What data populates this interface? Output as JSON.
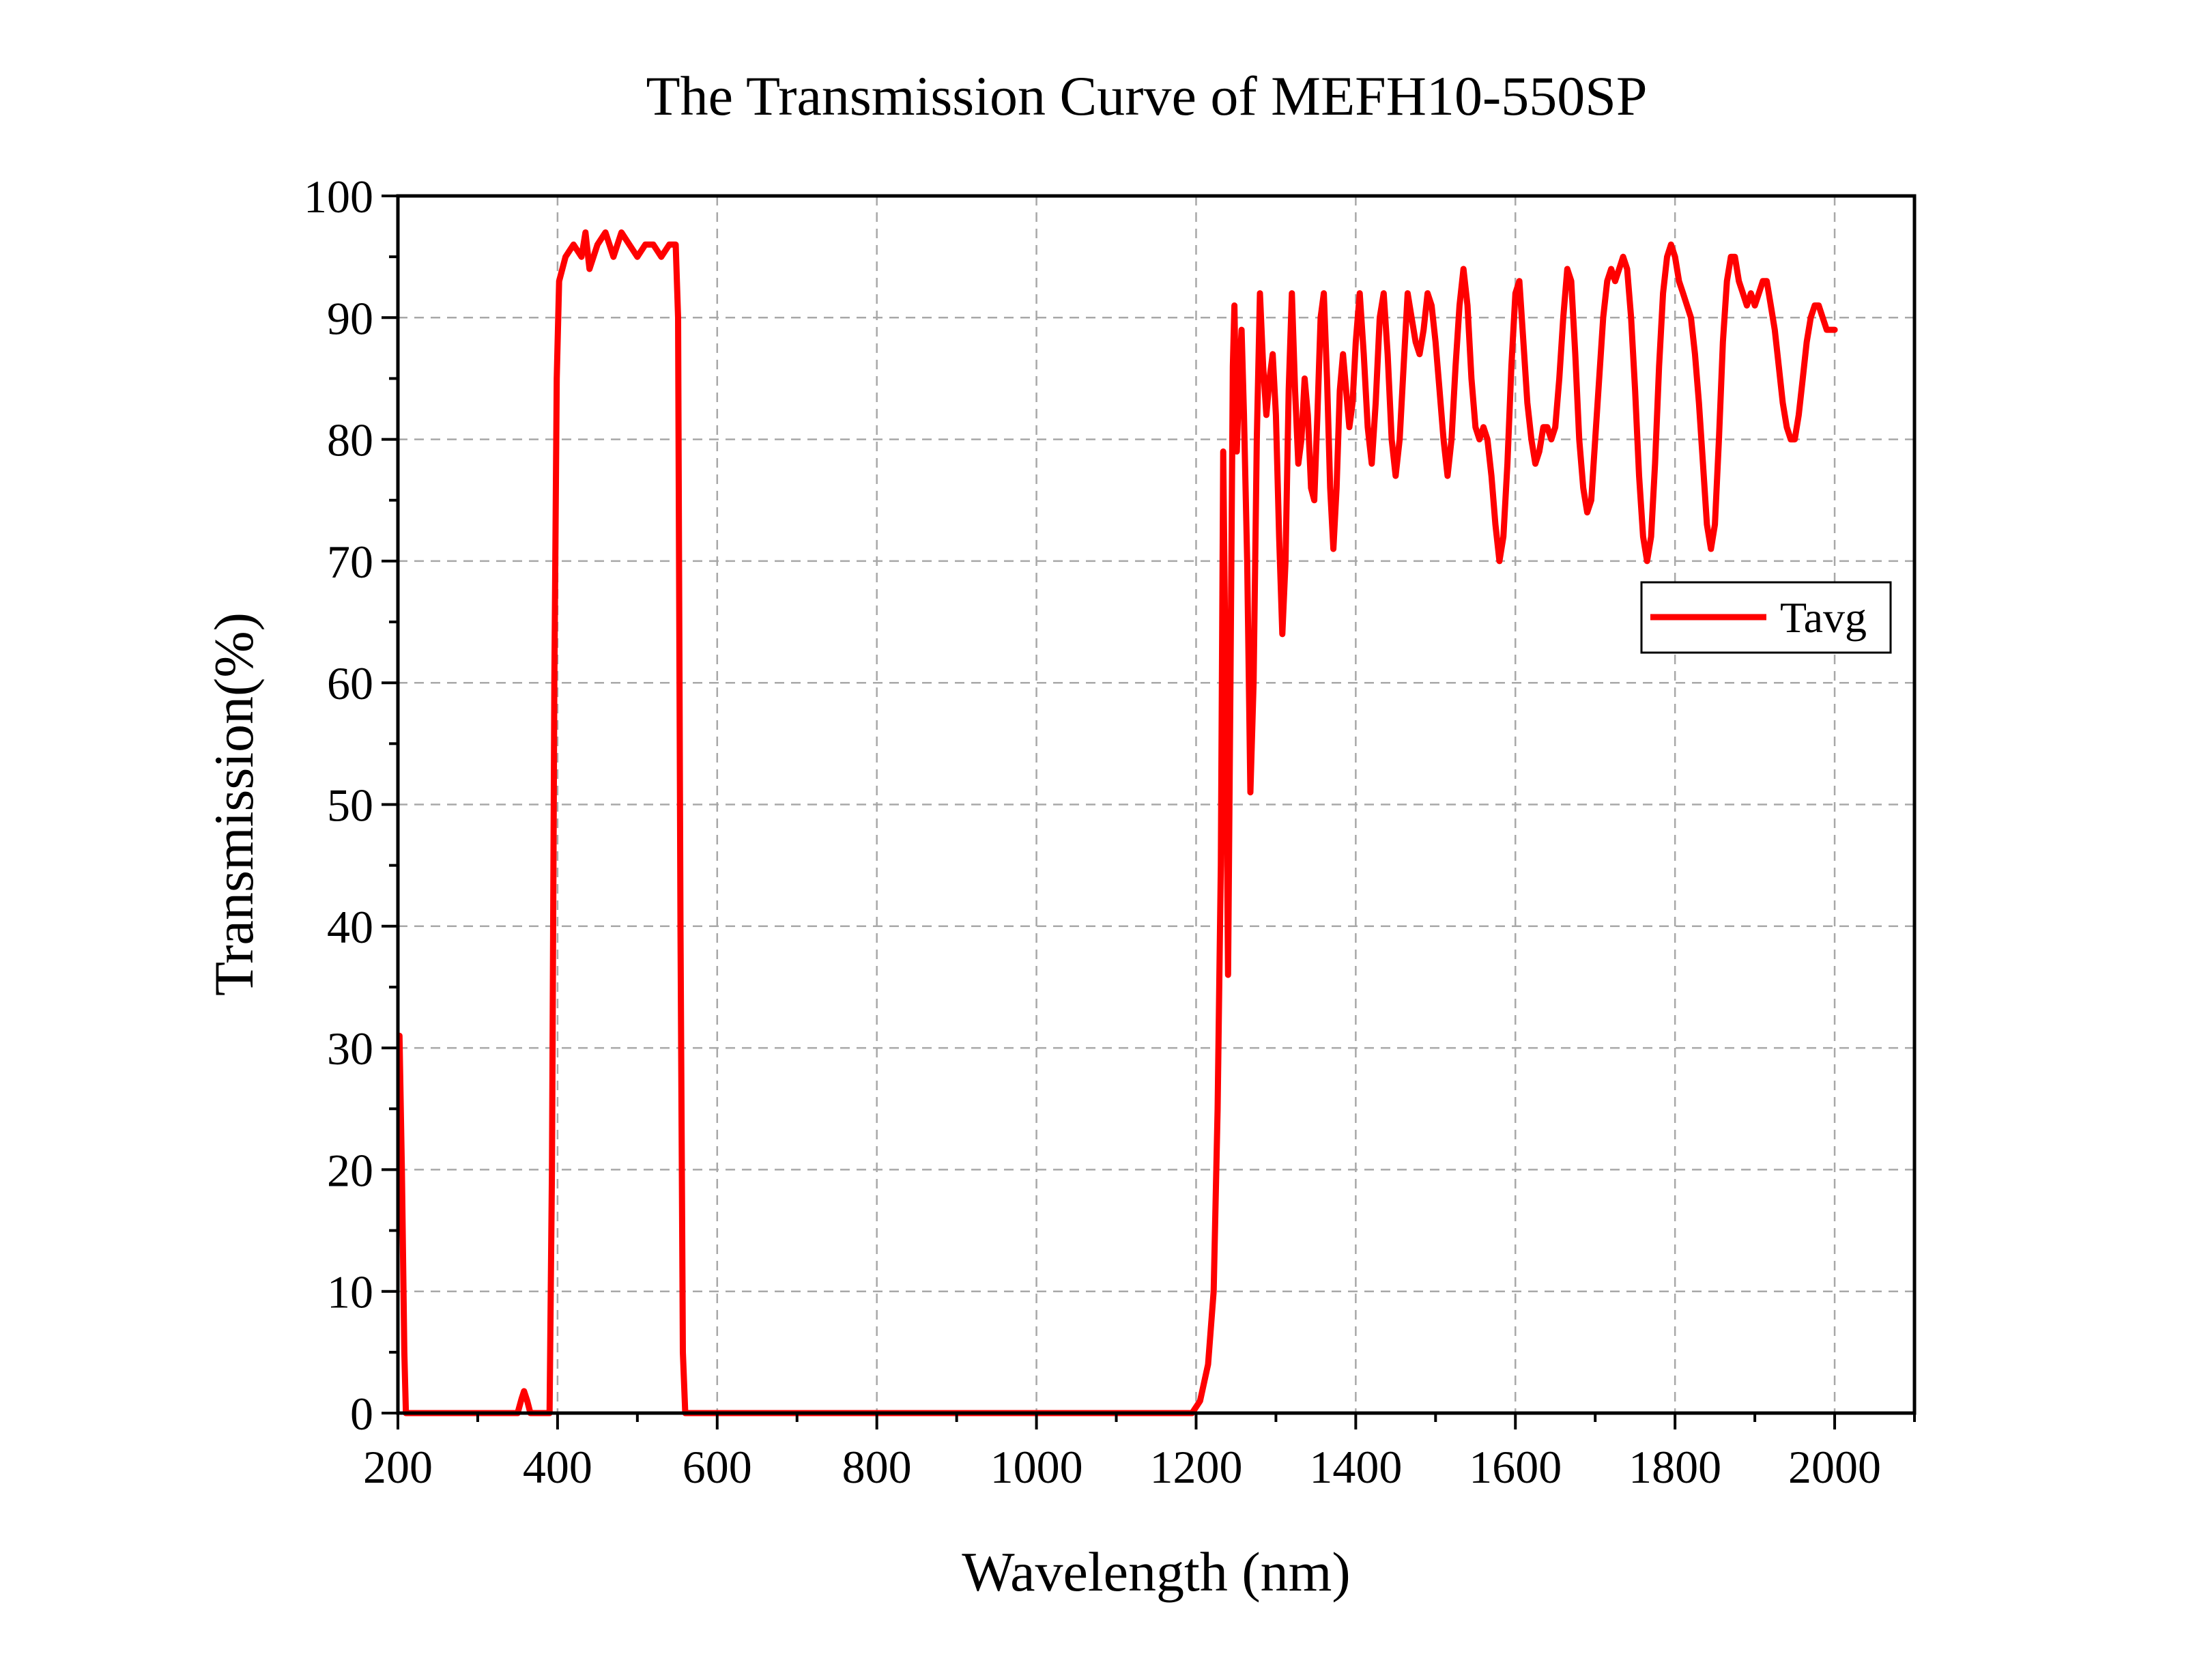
{
  "chart_data": {
    "type": "line",
    "title": "The Transmission Curve of MEFH10-550SP",
    "xlabel": "Wavelength (nm)",
    "ylabel": "Transmission(%)",
    "xlim": [
      200,
      2100
    ],
    "ylim": [
      0,
      100
    ],
    "xticks": [
      200,
      400,
      600,
      800,
      1000,
      1200,
      1400,
      1600,
      1800,
      2000
    ],
    "yticks": [
      0,
      10,
      20,
      30,
      40,
      50,
      60,
      70,
      80,
      90,
      100
    ],
    "grid": true,
    "legend": {
      "position": "right",
      "entries": [
        "Tavg"
      ]
    },
    "series": [
      {
        "name": "Tavg",
        "color": "#ff0000",
        "points": [
          [
            202,
            31
          ],
          [
            205,
            20
          ],
          [
            208,
            5
          ],
          [
            210,
            0
          ],
          [
            350,
            0
          ],
          [
            355,
            1.2
          ],
          [
            358,
            1.8
          ],
          [
            362,
            1.0
          ],
          [
            366,
            0
          ],
          [
            390,
            0
          ],
          [
            393,
            20
          ],
          [
            396,
            60
          ],
          [
            399,
            85
          ],
          [
            402,
            93
          ],
          [
            410,
            95
          ],
          [
            420,
            96
          ],
          [
            430,
            95
          ],
          [
            435,
            97
          ],
          [
            440,
            94
          ],
          [
            450,
            96
          ],
          [
            460,
            97
          ],
          [
            470,
            95
          ],
          [
            480,
            97
          ],
          [
            490,
            96
          ],
          [
            500,
            95
          ],
          [
            510,
            96
          ],
          [
            520,
            96
          ],
          [
            530,
            95
          ],
          [
            540,
            96
          ],
          [
            548,
            96
          ],
          [
            551,
            90
          ],
          [
            554,
            40
          ],
          [
            557,
            5
          ],
          [
            560,
            0
          ],
          [
            1195,
            0
          ],
          [
            1205,
            1
          ],
          [
            1215,
            4
          ],
          [
            1222,
            10
          ],
          [
            1227,
            25
          ],
          [
            1231,
            45
          ],
          [
            1234,
            79
          ],
          [
            1237,
            60
          ],
          [
            1240,
            36
          ],
          [
            1243,
            60
          ],
          [
            1246,
            86
          ],
          [
            1248,
            91
          ],
          [
            1251,
            79
          ],
          [
            1254,
            85
          ],
          [
            1257,
            89
          ],
          [
            1260,
            82
          ],
          [
            1264,
            70
          ],
          [
            1268,
            51
          ],
          [
            1272,
            60
          ],
          [
            1276,
            80
          ],
          [
            1280,
            92
          ],
          [
            1284,
            86
          ],
          [
            1288,
            82
          ],
          [
            1292,
            85
          ],
          [
            1296,
            87
          ],
          [
            1300,
            82
          ],
          [
            1304,
            72
          ],
          [
            1308,
            64
          ],
          [
            1312,
            70
          ],
          [
            1316,
            84
          ],
          [
            1320,
            92
          ],
          [
            1324,
            84
          ],
          [
            1328,
            78
          ],
          [
            1332,
            80
          ],
          [
            1336,
            85
          ],
          [
            1340,
            82
          ],
          [
            1344,
            76
          ],
          [
            1348,
            75
          ],
          [
            1352,
            82
          ],
          [
            1356,
            90
          ],
          [
            1360,
            92
          ],
          [
            1364,
            85
          ],
          [
            1368,
            76
          ],
          [
            1372,
            71
          ],
          [
            1376,
            76
          ],
          [
            1380,
            84
          ],
          [
            1384,
            87
          ],
          [
            1388,
            84
          ],
          [
            1392,
            81
          ],
          [
            1396,
            83
          ],
          [
            1400,
            88
          ],
          [
            1405,
            92
          ],
          [
            1410,
            87
          ],
          [
            1415,
            81
          ],
          [
            1420,
            78
          ],
          [
            1425,
            83
          ],
          [
            1430,
            90
          ],
          [
            1435,
            92
          ],
          [
            1440,
            87
          ],
          [
            1445,
            80
          ],
          [
            1450,
            77
          ],
          [
            1455,
            80
          ],
          [
            1460,
            86
          ],
          [
            1465,
            92
          ],
          [
            1470,
            90
          ],
          [
            1475,
            88
          ],
          [
            1480,
            87
          ],
          [
            1485,
            89
          ],
          [
            1490,
            92
          ],
          [
            1495,
            91
          ],
          [
            1500,
            88
          ],
          [
            1505,
            84
          ],
          [
            1510,
            80
          ],
          [
            1515,
            77
          ],
          [
            1520,
            80
          ],
          [
            1525,
            86
          ],
          [
            1530,
            91
          ],
          [
            1535,
            94
          ],
          [
            1540,
            91
          ],
          [
            1545,
            85
          ],
          [
            1550,
            81
          ],
          [
            1555,
            80
          ],
          [
            1560,
            81
          ],
          [
            1565,
            80
          ],
          [
            1570,
            77
          ],
          [
            1575,
            73
          ],
          [
            1580,
            70
          ],
          [
            1585,
            72
          ],
          [
            1590,
            78
          ],
          [
            1595,
            86
          ],
          [
            1600,
            92
          ],
          [
            1605,
            93
          ],
          [
            1610,
            88
          ],
          [
            1615,
            83
          ],
          [
            1620,
            80
          ],
          [
            1625,
            78
          ],
          [
            1630,
            79
          ],
          [
            1635,
            81
          ],
          [
            1640,
            81
          ],
          [
            1645,
            80
          ],
          [
            1650,
            81
          ],
          [
            1655,
            85
          ],
          [
            1660,
            90
          ],
          [
            1665,
            94
          ],
          [
            1670,
            93
          ],
          [
            1675,
            87
          ],
          [
            1680,
            80
          ],
          [
            1685,
            76
          ],
          [
            1690,
            74
          ],
          [
            1695,
            75
          ],
          [
            1700,
            80
          ],
          [
            1710,
            90
          ],
          [
            1715,
            93
          ],
          [
            1720,
            94
          ],
          [
            1725,
            93
          ],
          [
            1730,
            94
          ],
          [
            1735,
            95
          ],
          [
            1740,
            94
          ],
          [
            1745,
            90
          ],
          [
            1750,
            84
          ],
          [
            1755,
            77
          ],
          [
            1760,
            72
          ],
          [
            1765,
            70
          ],
          [
            1770,
            72
          ],
          [
            1775,
            78
          ],
          [
            1780,
            86
          ],
          [
            1785,
            92
          ],
          [
            1790,
            95
          ],
          [
            1795,
            96
          ],
          [
            1800,
            95
          ],
          [
            1805,
            93
          ],
          [
            1810,
            92
          ],
          [
            1815,
            91
          ],
          [
            1820,
            90
          ],
          [
            1825,
            87
          ],
          [
            1830,
            83
          ],
          [
            1835,
            78
          ],
          [
            1840,
            73
          ],
          [
            1845,
            71
          ],
          [
            1850,
            73
          ],
          [
            1855,
            80
          ],
          [
            1860,
            88
          ],
          [
            1865,
            93
          ],
          [
            1870,
            95
          ],
          [
            1875,
            95
          ],
          [
            1880,
            93
          ],
          [
            1885,
            92
          ],
          [
            1890,
            91
          ],
          [
            1895,
            92
          ],
          [
            1900,
            91
          ],
          [
            1905,
            92
          ],
          [
            1910,
            93
          ],
          [
            1915,
            93
          ],
          [
            1920,
            91
          ],
          [
            1925,
            89
          ],
          [
            1930,
            86
          ],
          [
            1935,
            83
          ],
          [
            1940,
            81
          ],
          [
            1945,
            80
          ],
          [
            1950,
            80
          ],
          [
            1955,
            82
          ],
          [
            1960,
            85
          ],
          [
            1965,
            88
          ],
          [
            1970,
            90
          ],
          [
            1975,
            91
          ],
          [
            1980,
            91
          ],
          [
            1985,
            90
          ],
          [
            1990,
            89
          ],
          [
            1995,
            89
          ],
          [
            2000,
            89
          ]
        ]
      }
    ]
  }
}
